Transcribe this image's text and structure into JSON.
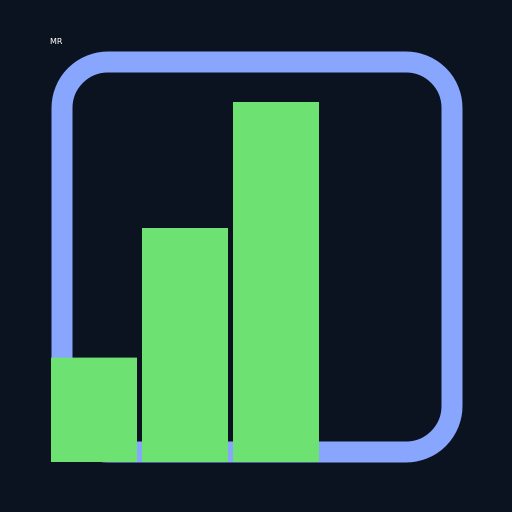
{
  "label": "MR",
  "icon": {
    "name": "bar-chart-icon",
    "frame_color": "#89a6ff",
    "bar_color": "#6de272",
    "background_color": "#0b1320",
    "bar_levels": [
      0.29,
      0.65,
      1.0
    ]
  }
}
